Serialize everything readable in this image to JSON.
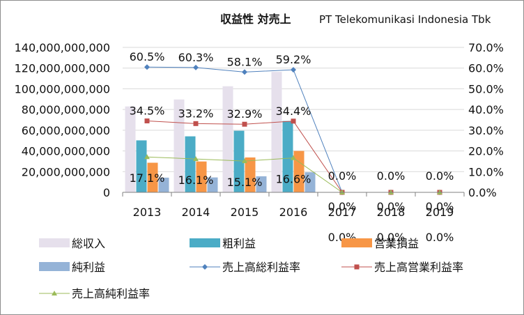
{
  "chart_data": {
    "type": "bar+line",
    "title": "収益性 対売上",
    "subtitle": "PT Telekomunikasi Indonesia Tbk",
    "categories": [
      "2013",
      "2014",
      "2015",
      "2016",
      "2017",
      "2018",
      "2019"
    ],
    "left_axis": {
      "ylim": [
        0,
        140000000000
      ],
      "ticks": [
        "0",
        "20,000,000,000",
        "40,000,000,000",
        "60,000,000,000",
        "80,000,000,000",
        "100,000,000,000",
        "120,000,000,000",
        "140,000,000,000"
      ]
    },
    "right_axis": {
      "ylim": [
        0,
        70
      ],
      "ticks": [
        "0.0%",
        "10.0%",
        "20.0%",
        "30.0%",
        "40.0%",
        "50.0%",
        "60.0%",
        "70.0%"
      ]
    },
    "bar_series": [
      {
        "name": "総収入",
        "color": "#e6e0ec",
        "values": [
          82967000000,
          89696000000,
          102470000000,
          116333000000,
          0,
          0,
          0
        ]
      },
      {
        "name": "粗利益",
        "color": "#4bacc6",
        "values": [
          50200000000,
          54100000000,
          59500000000,
          68900000000,
          0,
          0,
          0
        ]
      },
      {
        "name": "営業損益",
        "color": "#f79646",
        "values": [
          28600000000,
          29800000000,
          33700000000,
          40000000000,
          0,
          0,
          0
        ]
      },
      {
        "name": "純利益",
        "color": "#95b3d7",
        "values": [
          14200000000,
          14400000000,
          15500000000,
          19400000000,
          0,
          0,
          0
        ]
      }
    ],
    "line_series": [
      {
        "name": "売上高総利益率",
        "color": "#4f81bd",
        "marker": "diamond",
        "values": [
          60.5,
          60.3,
          58.1,
          59.2,
          0,
          0,
          0
        ],
        "labels": [
          "60.5%",
          "60.3%",
          "58.1%",
          "59.2%",
          "0.0%",
          "0.0%",
          "0.0%"
        ]
      },
      {
        "name": "売上高営業利益率",
        "color": "#c0504d",
        "marker": "square",
        "values": [
          34.5,
          33.2,
          32.9,
          34.4,
          0,
          0,
          0
        ],
        "labels": [
          "34.5%",
          "33.2%",
          "32.9%",
          "34.4%",
          "0.0%",
          "0.0%",
          "0.0%"
        ]
      },
      {
        "name": "売上高純利益率",
        "color": "#9bbb59",
        "marker": "triangle",
        "values": [
          17.1,
          16.1,
          15.1,
          16.6,
          0,
          0,
          0
        ],
        "labels": [
          "17.1%",
          "16.1%",
          "15.1%",
          "16.6%",
          "0.0%",
          "0.0%",
          "0.0%"
        ]
      }
    ],
    "legend": [
      "総収入",
      "粗利益",
      "営業損益",
      "純利益",
      "売上高総利益率",
      "売上高営業利益率",
      "売上高純利益率"
    ],
    "legend_position": "bottom"
  }
}
